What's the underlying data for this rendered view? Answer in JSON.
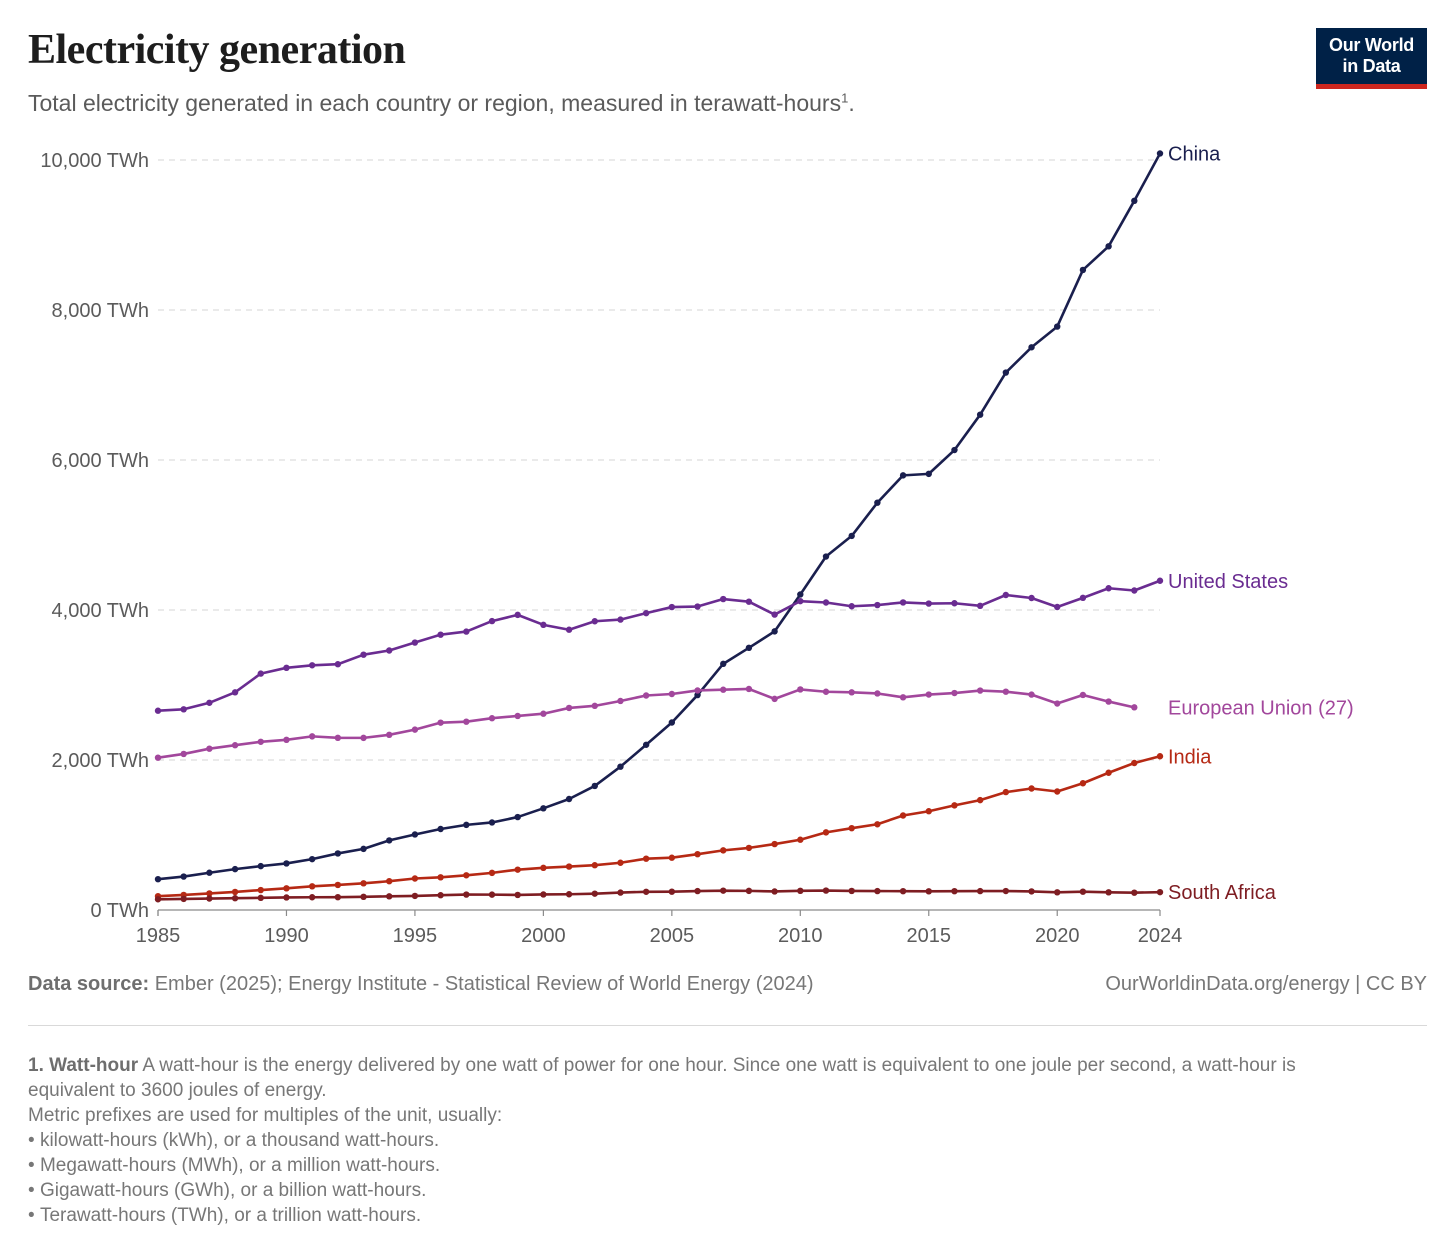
{
  "header": {
    "title": "Electricity generation",
    "subtitle": "Total electricity generated in each country or region, measured in  terawatt-hours",
    "subtitle_note_ref": "1",
    "subtitle_end": "."
  },
  "logo": {
    "line1": "Our World",
    "line2": "in Data"
  },
  "chart_data": {
    "type": "line",
    "title": "Electricity generation",
    "subtitle": "Total electricity generated in each country or region, measured in terawatt-hours",
    "ylim": [
      0,
      10000
    ],
    "xlim": [
      1985,
      2024
    ],
    "y_ticks": [
      0,
      2000,
      4000,
      6000,
      8000,
      10000
    ],
    "y_tick_labels": [
      "0 TWh",
      "2,000 TWh",
      "4,000 TWh",
      "6,000 TWh",
      "8,000 TWh",
      "10,000 TWh"
    ],
    "x_ticks": [
      1985,
      1990,
      1995,
      2000,
      2005,
      2010,
      2015,
      2020,
      2024
    ],
    "x_tick_labels": [
      "1985",
      "1990",
      "1995",
      "2000",
      "2005",
      "2010",
      "2015",
      "2020",
      "2024"
    ],
    "grid": "horizontal dashed",
    "legend": "line end labels",
    "series": [
      {
        "name": "China",
        "color": "#1a1f4e",
        "x": [
          1985,
          1986,
          1987,
          1988,
          1989,
          1990,
          1991,
          1992,
          1993,
          1994,
          1995,
          1996,
          1997,
          1998,
          1999,
          2000,
          2001,
          2002,
          2003,
          2004,
          2005,
          2006,
          2007,
          2008,
          2009,
          2010,
          2011,
          2012,
          2013,
          2014,
          2015,
          2016,
          2017,
          2018,
          2019,
          2020,
          2021,
          2022,
          2023,
          2024
        ],
        "values": [
          411,
          446,
          497,
          545,
          585,
          621,
          678,
          754,
          815,
          928,
          1007,
          1080,
          1135,
          1167,
          1239,
          1356,
          1480,
          1654,
          1911,
          2203,
          2500,
          2866,
          3282,
          3496,
          3715,
          4207,
          4713,
          4988,
          5431,
          5795,
          5815,
          6133,
          6604,
          7166,
          7503,
          7779,
          8534,
          8849,
          9456,
          10087
        ]
      },
      {
        "name": "United States",
        "color": "#6a2c91",
        "x": [
          1985,
          1986,
          1987,
          1988,
          1989,
          1990,
          1991,
          1992,
          1993,
          1994,
          1995,
          1996,
          1997,
          1998,
          1999,
          2000,
          2001,
          2002,
          2003,
          2004,
          2005,
          2006,
          2007,
          2008,
          2009,
          2010,
          2011,
          2012,
          2013,
          2014,
          2015,
          2016,
          2017,
          2018,
          2019,
          2020,
          2021,
          2022,
          2023,
          2024
        ],
        "values": [
          2657,
          2676,
          2763,
          2902,
          3152,
          3229,
          3263,
          3277,
          3404,
          3460,
          3566,
          3671,
          3712,
          3852,
          3935,
          3802,
          3737,
          3850,
          3872,
          3958,
          4039,
          4046,
          4146,
          4111,
          3939,
          4118,
          4100,
          4050,
          4066,
          4101,
          4086,
          4090,
          4056,
          4200,
          4160,
          4040,
          4162,
          4290,
          4260,
          4390
        ]
      },
      {
        "name": "European Union (27)",
        "color": "#a2479c",
        "x": [
          1985,
          1986,
          1987,
          1988,
          1989,
          1990,
          1991,
          1992,
          1993,
          1994,
          1995,
          1996,
          1997,
          1998,
          1999,
          2000,
          2001,
          2002,
          2003,
          2004,
          2005,
          2006,
          2007,
          2008,
          2009,
          2010,
          2011,
          2012,
          2013,
          2014,
          2015,
          2016,
          2017,
          2018,
          2019,
          2020,
          2021,
          2022,
          2023
        ],
        "values": [
          2031,
          2081,
          2151,
          2197,
          2243,
          2269,
          2315,
          2296,
          2295,
          2336,
          2405,
          2498,
          2511,
          2557,
          2587,
          2617,
          2694,
          2722,
          2787,
          2860,
          2880,
          2927,
          2937,
          2947,
          2815,
          2941,
          2910,
          2902,
          2887,
          2836,
          2873,
          2893,
          2926,
          2911,
          2872,
          2753,
          2867,
          2779,
          2702
        ]
      },
      {
        "name": "India",
        "color": "#b62914",
        "x": [
          1985,
          1986,
          1987,
          1988,
          1989,
          1990,
          1991,
          1992,
          1993,
          1994,
          1995,
          1996,
          1997,
          1998,
          1999,
          2000,
          2001,
          2002,
          2003,
          2004,
          2005,
          2006,
          2007,
          2008,
          2009,
          2010,
          2011,
          2012,
          2013,
          2014,
          2015,
          2016,
          2017,
          2018,
          2019,
          2020,
          2021,
          2022,
          2023,
          2024
        ],
        "values": [
          184,
          201,
          221,
          241,
          266,
          289,
          316,
          334,
          356,
          384,
          420,
          436,
          463,
          495,
          538,
          562,
          579,
          597,
          630,
          684,
          697,
          744,
          795,
          828,
          879,
          937,
          1035,
          1091,
          1143,
          1260,
          1317,
          1395,
          1465,
          1572,
          1620,
          1580,
          1690,
          1830,
          1960,
          2050
        ]
      },
      {
        "name": "South Africa",
        "color": "#7e1d22",
        "x": [
          1985,
          1986,
          1987,
          1988,
          1989,
          1990,
          1991,
          1992,
          1993,
          1994,
          1995,
          1996,
          1997,
          1998,
          1999,
          2000,
          2001,
          2002,
          2003,
          2004,
          2005,
          2006,
          2007,
          2008,
          2009,
          2010,
          2011,
          2012,
          2013,
          2014,
          2015,
          2016,
          2017,
          2018,
          2019,
          2020,
          2021,
          2022,
          2023,
          2024
        ],
        "values": [
          143,
          148,
          153,
          157,
          162,
          167,
          170,
          171,
          176,
          182,
          188,
          197,
          206,
          205,
          201,
          207,
          210,
          218,
          232,
          243,
          244,
          252,
          258,
          255,
          247,
          256,
          259,
          254,
          252,
          251,
          249,
          251,
          252,
          253,
          248,
          236,
          244,
          236,
          231,
          238
        ]
      }
    ]
  },
  "footer": {
    "source_label": "Data source:",
    "source_text": " Ember (2025); Energy Institute - Statistical Review of World Energy (2024)",
    "license": "OurWorldinData.org/energy  | CC BY"
  },
  "notes": {
    "title": "1. Watt-hour",
    "text": " A watt-hour is the energy delivered by one watt of power for one hour. Since one watt is equivalent to one joule per second, a watt-hour is equivalent to 3600 joules of energy.",
    "prefix_intro": "Metric prefixes are used for multiples of the unit, usually:",
    "bullets": [
      "kilowatt-hours (kWh), or a thousand watt-hours.",
      "Megawatt-hours (MWh), or a million watt-hours.",
      "Gigawatt-hours (GWh), or a billion watt-hours.",
      "Terawatt-hours (TWh), or a trillion watt-hours."
    ]
  }
}
